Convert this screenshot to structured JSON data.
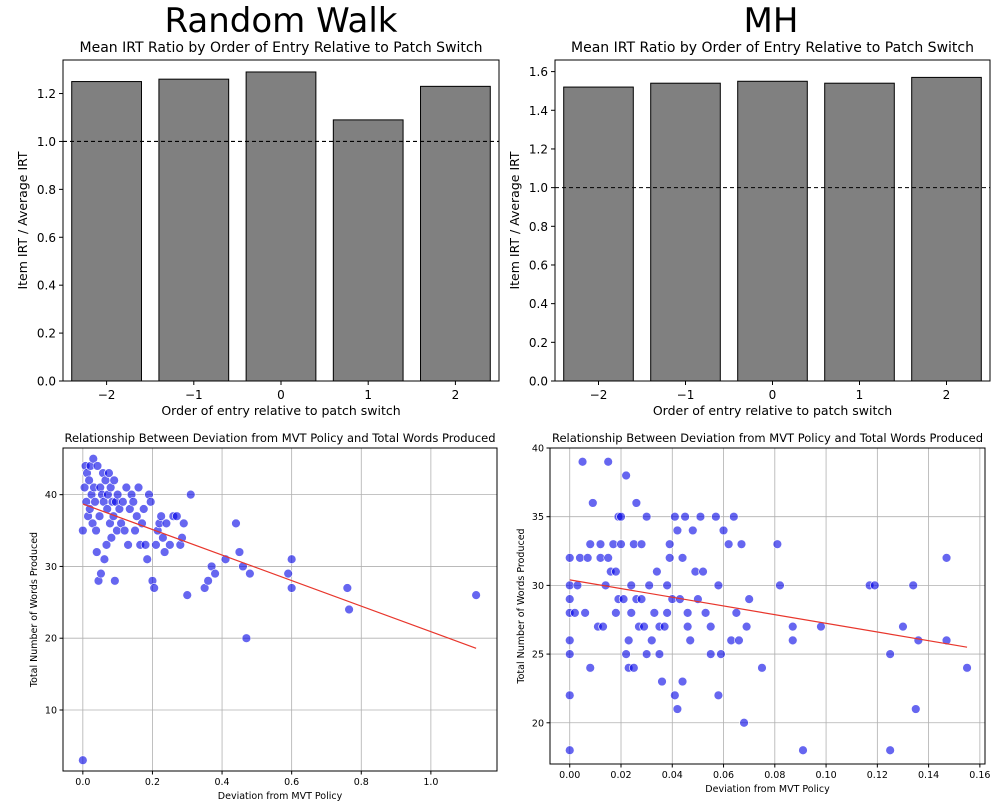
{
  "figure_titles": [
    "Random Walk",
    "MH"
  ],
  "chart_data": [
    {
      "type": "bar",
      "column": "Random Walk",
      "title": "Mean IRT Ratio by Order of Entry Relative to Patch Switch",
      "xlabel": "Order of entry relative to patch switch",
      "ylabel": "Item IRT / Average IRT",
      "categories": [
        "−2",
        "−1",
        "0",
        "1",
        "2"
      ],
      "values": [
        1.25,
        1.26,
        1.29,
        1.09,
        1.23
      ],
      "reference_line": 1.0,
      "ylim": [
        0,
        1.34
      ],
      "yticks": [
        0.0,
        0.2,
        0.4,
        0.6,
        0.8,
        1.0,
        1.2
      ],
      "ytick_labels": [
        "0.0",
        "0.2",
        "0.4",
        "0.6",
        "0.8",
        "1.0",
        "1.2"
      ],
      "bar_color": "#808080",
      "grid": false
    },
    {
      "type": "bar",
      "column": "MH",
      "title": "Mean IRT Ratio by Order of Entry Relative to Patch Switch",
      "xlabel": "Order of entry relative to patch switch",
      "ylabel": "Item IRT / Average IRT",
      "categories": [
        "−2",
        "−1",
        "0",
        "1",
        "2"
      ],
      "values": [
        1.52,
        1.54,
        1.55,
        1.54,
        1.57
      ],
      "reference_line": 1.0,
      "ylim": [
        0,
        1.66
      ],
      "yticks": [
        0.0,
        0.2,
        0.4,
        0.6,
        0.8,
        1.0,
        1.2,
        1.4,
        1.6
      ],
      "ytick_labels": [
        "0.0",
        "0.2",
        "0.4",
        "0.6",
        "0.8",
        "1.0",
        "1.2",
        "1.4",
        "1.6"
      ],
      "bar_color": "#808080",
      "grid": false
    },
    {
      "type": "scatter",
      "column": "Random Walk",
      "title": "Relationship Between Deviation from MVT Policy and Total Words Produced",
      "xlabel": "Deviation from MVT Policy",
      "ylabel": "Total Number of Words Produced",
      "xlim": [
        -0.057,
        1.19
      ],
      "ylim": [
        1.5,
        46.5
      ],
      "xticks": [
        0.0,
        0.2,
        0.4,
        0.6,
        0.8,
        1.0
      ],
      "xtick_labels": [
        "0.0",
        "0.2",
        "0.4",
        "0.6",
        "0.8",
        "1.0"
      ],
      "yticks": [
        10,
        20,
        30,
        40
      ],
      "ytick_labels": [
        "10",
        "20",
        "30",
        "40"
      ],
      "grid": true,
      "point_color": "#0000e6",
      "trend_color": "#e8362c",
      "trend_line": {
        "x": [
          0.0,
          1.13
        ],
        "y": [
          38.7,
          18.6
        ]
      },
      "points": [
        [
          0.0,
          3
        ],
        [
          0.0,
          35
        ],
        [
          0.005,
          41
        ],
        [
          0.008,
          44
        ],
        [
          0.01,
          39
        ],
        [
          0.012,
          43
        ],
        [
          0.015,
          37
        ],
        [
          0.018,
          42
        ],
        [
          0.02,
          38
        ],
        [
          0.022,
          44
        ],
        [
          0.025,
          40
        ],
        [
          0.028,
          36
        ],
        [
          0.03,
          45
        ],
        [
          0.032,
          41
        ],
        [
          0.035,
          39
        ],
        [
          0.038,
          35
        ],
        [
          0.04,
          32
        ],
        [
          0.042,
          44
        ],
        [
          0.045,
          28
        ],
        [
          0.048,
          37
        ],
        [
          0.05,
          41
        ],
        [
          0.052,
          29
        ],
        [
          0.055,
          40
        ],
        [
          0.058,
          43
        ],
        [
          0.06,
          39
        ],
        [
          0.062,
          31
        ],
        [
          0.065,
          42
        ],
        [
          0.068,
          33
        ],
        [
          0.07,
          38
        ],
        [
          0.072,
          40
        ],
        [
          0.075,
          43
        ],
        [
          0.078,
          36
        ],
        [
          0.08,
          41
        ],
        [
          0.082,
          34
        ],
        [
          0.085,
          39
        ],
        [
          0.088,
          37
        ],
        [
          0.09,
          42
        ],
        [
          0.092,
          28
        ],
        [
          0.095,
          39
        ],
        [
          0.098,
          35
        ],
        [
          0.1,
          40
        ],
        [
          0.105,
          38
        ],
        [
          0.11,
          36
        ],
        [
          0.115,
          39
        ],
        [
          0.12,
          35
        ],
        [
          0.125,
          41
        ],
        [
          0.13,
          33
        ],
        [
          0.135,
          38
        ],
        [
          0.14,
          40
        ],
        [
          0.145,
          39
        ],
        [
          0.15,
          35
        ],
        [
          0.155,
          37
        ],
        [
          0.16,
          41
        ],
        [
          0.165,
          33
        ],
        [
          0.17,
          36
        ],
        [
          0.175,
          38
        ],
        [
          0.18,
          33
        ],
        [
          0.185,
          31
        ],
        [
          0.19,
          40
        ],
        [
          0.195,
          39
        ],
        [
          0.2,
          28
        ],
        [
          0.205,
          27
        ],
        [
          0.21,
          33
        ],
        [
          0.215,
          35
        ],
        [
          0.22,
          36
        ],
        [
          0.225,
          37
        ],
        [
          0.23,
          34
        ],
        [
          0.235,
          32
        ],
        [
          0.24,
          36
        ],
        [
          0.25,
          33
        ],
        [
          0.26,
          37
        ],
        [
          0.27,
          37
        ],
        [
          0.28,
          33
        ],
        [
          0.285,
          34
        ],
        [
          0.29,
          36
        ],
        [
          0.3,
          26
        ],
        [
          0.31,
          40
        ],
        [
          0.35,
          27
        ],
        [
          0.36,
          28
        ],
        [
          0.37,
          30
        ],
        [
          0.38,
          29
        ],
        [
          0.41,
          31
        ],
        [
          0.44,
          36
        ],
        [
          0.45,
          32
        ],
        [
          0.46,
          30
        ],
        [
          0.47,
          20
        ],
        [
          0.48,
          29
        ],
        [
          0.59,
          29
        ],
        [
          0.6,
          31
        ],
        [
          0.6,
          27
        ],
        [
          0.76,
          27
        ],
        [
          0.765,
          24
        ],
        [
          1.13,
          26
        ]
      ]
    },
    {
      "type": "scatter",
      "column": "MH",
      "title": "Relationship Between Deviation from MVT Policy and Total Words Produced",
      "xlabel": "Deviation from MVT Policy",
      "ylabel": "Total Number of Words Produced",
      "xlim": [
        -0.0077,
        0.162
      ],
      "ylim": [
        17.0,
        40.0
      ],
      "xticks": [
        0.0,
        0.02,
        0.04,
        0.06,
        0.08,
        0.1,
        0.12,
        0.14,
        0.16
      ],
      "xtick_labels": [
        "0.00",
        "0.02",
        "0.04",
        "0.06",
        "0.08",
        "0.10",
        "0.12",
        "0.14",
        "0.16"
      ],
      "yticks": [
        20,
        25,
        30,
        35,
        40
      ],
      "ytick_labels": [
        "20",
        "25",
        "30",
        "35",
        "40"
      ],
      "grid": true,
      "point_color": "#0000e6",
      "trend_color": "#e8362c",
      "trend_line": {
        "x": [
          0.0,
          0.155
        ],
        "y": [
          30.4,
          25.5
        ]
      },
      "points": [
        [
          0.0,
          18
        ],
        [
          0.0,
          22
        ],
        [
          0.0,
          25
        ],
        [
          0.0,
          26
        ],
        [
          0.0,
          28
        ],
        [
          0.0,
          29
        ],
        [
          0.0,
          30
        ],
        [
          0.0,
          32
        ],
        [
          0.002,
          28
        ],
        [
          0.003,
          30
        ],
        [
          0.004,
          32
        ],
        [
          0.005,
          39
        ],
        [
          0.006,
          28
        ],
        [
          0.007,
          32
        ],
        [
          0.008,
          33
        ],
        [
          0.008,
          24
        ],
        [
          0.009,
          36
        ],
        [
          0.011,
          27
        ],
        [
          0.012,
          32
        ],
        [
          0.012,
          33
        ],
        [
          0.013,
          27
        ],
        [
          0.014,
          30
        ],
        [
          0.015,
          39
        ],
        [
          0.015,
          32
        ],
        [
          0.016,
          31
        ],
        [
          0.017,
          33
        ],
        [
          0.018,
          28
        ],
        [
          0.018,
          31
        ],
        [
          0.019,
          35
        ],
        [
          0.019,
          29
        ],
        [
          0.02,
          33
        ],
        [
          0.02,
          35
        ],
        [
          0.021,
          29
        ],
        [
          0.022,
          38
        ],
        [
          0.022,
          25
        ],
        [
          0.023,
          24
        ],
        [
          0.023,
          26
        ],
        [
          0.024,
          28
        ],
        [
          0.024,
          30
        ],
        [
          0.025,
          24
        ],
        [
          0.025,
          33
        ],
        [
          0.026,
          36
        ],
        [
          0.026,
          29
        ],
        [
          0.027,
          27
        ],
        [
          0.028,
          33
        ],
        [
          0.028,
          29
        ],
        [
          0.029,
          27
        ],
        [
          0.03,
          35
        ],
        [
          0.03,
          25
        ],
        [
          0.031,
          30
        ],
        [
          0.032,
          26
        ],
        [
          0.033,
          28
        ],
        [
          0.034,
          31
        ],
        [
          0.035,
          27
        ],
        [
          0.035,
          25
        ],
        [
          0.036,
          23
        ],
        [
          0.037,
          27
        ],
        [
          0.038,
          30
        ],
        [
          0.038,
          28
        ],
        [
          0.039,
          32
        ],
        [
          0.039,
          33
        ],
        [
          0.04,
          29
        ],
        [
          0.041,
          35
        ],
        [
          0.041,
          22
        ],
        [
          0.042,
          34
        ],
        [
          0.042,
          21
        ],
        [
          0.043,
          29
        ],
        [
          0.044,
          32
        ],
        [
          0.044,
          23
        ],
        [
          0.045,
          35
        ],
        [
          0.046,
          27
        ],
        [
          0.046,
          28
        ],
        [
          0.047,
          26
        ],
        [
          0.048,
          34
        ],
        [
          0.049,
          31
        ],
        [
          0.05,
          29
        ],
        [
          0.051,
          35
        ],
        [
          0.052,
          31
        ],
        [
          0.053,
          28
        ],
        [
          0.055,
          27
        ],
        [
          0.055,
          25
        ],
        [
          0.057,
          35
        ],
        [
          0.058,
          30
        ],
        [
          0.058,
          22
        ],
        [
          0.059,
          25
        ],
        [
          0.06,
          34
        ],
        [
          0.062,
          33
        ],
        [
          0.063,
          26
        ],
        [
          0.064,
          35
        ],
        [
          0.065,
          28
        ],
        [
          0.066,
          26
        ],
        [
          0.067,
          33
        ],
        [
          0.068,
          20
        ],
        [
          0.069,
          27
        ],
        [
          0.07,
          29
        ],
        [
          0.075,
          24
        ],
        [
          0.081,
          33
        ],
        [
          0.082,
          30
        ],
        [
          0.087,
          27
        ],
        [
          0.087,
          26
        ],
        [
          0.091,
          18
        ],
        [
          0.098,
          27
        ],
        [
          0.117,
          30
        ],
        [
          0.119,
          30
        ],
        [
          0.125,
          25
        ],
        [
          0.125,
          18
        ],
        [
          0.13,
          27
        ],
        [
          0.134,
          30
        ],
        [
          0.135,
          21
        ],
        [
          0.136,
          26
        ],
        [
          0.147,
          32
        ],
        [
          0.147,
          26
        ],
        [
          0.155,
          24
        ]
      ]
    }
  ]
}
